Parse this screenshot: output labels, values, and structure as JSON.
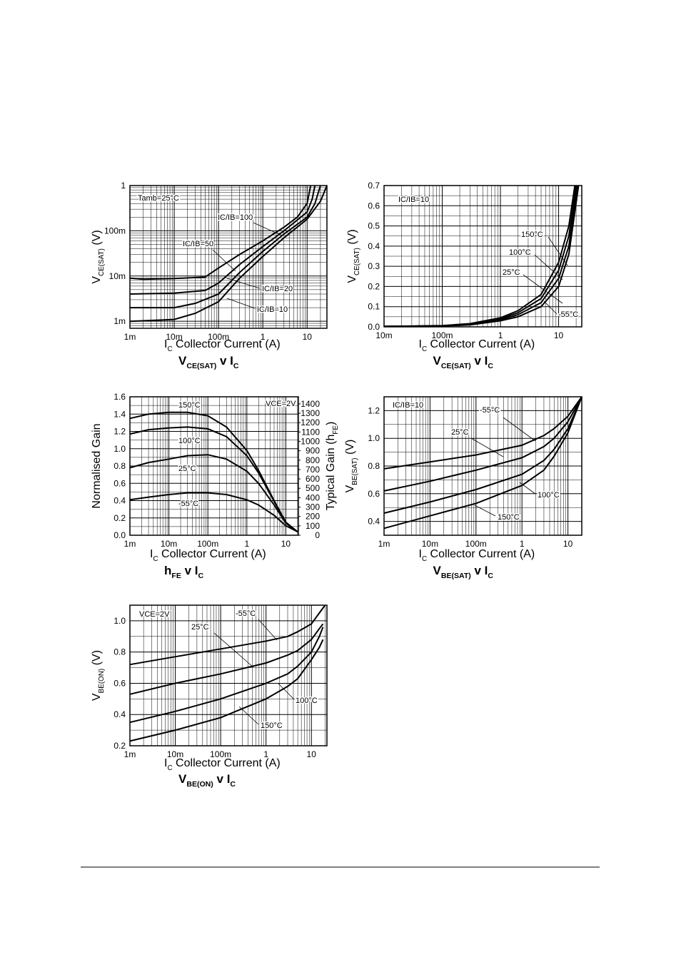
{
  "chart_data": [
    {
      "type": "line",
      "title": [
        "V",
        "CE(SAT)",
        " v I",
        "C"
      ],
      "xlabel": [
        "I",
        "C",
        "   Collector Current (A)"
      ],
      "ylabel": [
        "V",
        "CE(SAT)",
        "  (V)"
      ],
      "annotation": "Tamb=25°C",
      "xlog": true,
      "ylog": true,
      "grid": true,
      "minor_grid": true,
      "xlim": [
        0.001,
        28
      ],
      "ylim": [
        0.0007,
        1
      ],
      "xticks": [
        {
          "value": 0.001,
          "label": "1m"
        },
        {
          "value": 0.01,
          "label": "10m"
        },
        {
          "value": 0.1,
          "label": "100m"
        },
        1,
        10
      ],
      "yticks": [
        {
          "value": 0.001,
          "label": "1m"
        },
        {
          "value": 0.01,
          "label": "10m"
        },
        {
          "value": 0.1,
          "label": "100m"
        },
        1
      ],
      "series": [
        {
          "name": "IC/IB=100",
          "color": "#000000",
          "x": [
            0.001,
            0.002,
            0.01,
            0.05,
            0.1,
            0.3,
            1,
            3,
            6,
            10,
            12
          ],
          "values": [
            0.009,
            0.0085,
            0.0088,
            0.0095,
            0.015,
            0.03,
            0.06,
            0.12,
            0.2,
            0.4,
            1
          ]
        },
        {
          "name": "IC/IB=50",
          "color": "#000000",
          "x": [
            0.001,
            0.01,
            0.05,
            0.1,
            0.3,
            1,
            3,
            10,
            13,
            15
          ],
          "values": [
            0.004,
            0.0042,
            0.0048,
            0.007,
            0.018,
            0.045,
            0.1,
            0.26,
            0.5,
            1
          ]
        },
        {
          "name": "IC/IB=20",
          "color": "#000000",
          "x": [
            0.001,
            0.01,
            0.03,
            0.1,
            0.3,
            1,
            3,
            10,
            15,
            20
          ],
          "values": [
            0.002,
            0.002,
            0.0025,
            0.004,
            0.012,
            0.035,
            0.085,
            0.2,
            0.4,
            1
          ]
        },
        {
          "name": "IC/IB=10",
          "color": "#000000",
          "x": [
            0.001,
            0.01,
            0.03,
            0.1,
            0.3,
            1,
            3,
            10,
            20,
            28
          ],
          "values": [
            0.001,
            0.0011,
            0.0015,
            0.0027,
            0.009,
            0.027,
            0.07,
            0.18,
            0.45,
            1
          ]
        }
      ]
    },
    {
      "type": "line",
      "title": [
        "V",
        "CE(SAT)",
        " v I",
        "C"
      ],
      "xlabel": [
        "I",
        "C",
        "   Collector Current (A)"
      ],
      "ylabel": [
        "V",
        "CE(SAT)",
        "  (V)"
      ],
      "annotation": "IC/IB=10",
      "xlog": true,
      "ylog": false,
      "grid": true,
      "minor_grid": true,
      "xlim": [
        0.01,
        25
      ],
      "ylim": [
        0,
        0.7
      ],
      "xticks": [
        {
          "value": 0.01,
          "label": "10m"
        },
        {
          "value": 0.1,
          "label": "100m"
        },
        1,
        10
      ],
      "yticks": [
        {
          "value": 0,
          "label": "0.0"
        },
        0.1,
        0.2,
        0.3,
        0.4,
        0.5,
        0.6,
        0.7
      ],
      "series": [
        {
          "name": "150°C",
          "color": "#000000",
          "x": [
            0.01,
            0.1,
            0.3,
            1,
            2,
            5,
            10,
            15,
            19
          ],
          "values": [
            0.002,
            0.006,
            0.016,
            0.045,
            0.08,
            0.16,
            0.32,
            0.5,
            0.7
          ]
        },
        {
          "name": "100°C",
          "color": "#000000",
          "x": [
            0.01,
            0.1,
            0.3,
            1,
            2,
            5,
            10,
            15,
            20
          ],
          "values": [
            0.002,
            0.005,
            0.014,
            0.04,
            0.07,
            0.14,
            0.28,
            0.45,
            0.7
          ]
        },
        {
          "name": "25°C",
          "color": "#000000",
          "x": [
            0.01,
            0.1,
            0.3,
            1,
            2,
            5,
            10,
            15,
            21
          ],
          "values": [
            0.002,
            0.005,
            0.012,
            0.035,
            0.06,
            0.12,
            0.24,
            0.4,
            0.7
          ]
        },
        {
          "name": "-55°C",
          "color": "#000000",
          "x": [
            0.01,
            0.1,
            0.3,
            1,
            2,
            5,
            10,
            15,
            22
          ],
          "values": [
            0.002,
            0.004,
            0.01,
            0.03,
            0.05,
            0.1,
            0.2,
            0.36,
            0.7
          ]
        }
      ]
    },
    {
      "type": "line",
      "title": [
        "h",
        "FE",
        " v I",
        "C"
      ],
      "xlabel": [
        "I",
        "C",
        "   Collector Current (A)"
      ],
      "ylabel": [
        "Normalised Gain"
      ],
      "y2label": [
        "Typical Gain (h",
        "FE",
        ")"
      ],
      "annotation": "VCE=2V",
      "xlog": true,
      "ylog": false,
      "grid": true,
      "minor_grid": true,
      "xlim": [
        0.001,
        21
      ],
      "ylim": [
        0,
        1.6
      ],
      "y2lim": [
        0,
        1475
      ],
      "xticks": [
        {
          "value": 0.001,
          "label": "1m"
        },
        {
          "value": 0.01,
          "label": "10m"
        },
        {
          "value": 0.1,
          "label": "100m"
        },
        1,
        10
      ],
      "yticks": [
        {
          "value": 0,
          "label": "0.0"
        },
        0.2,
        0.4,
        0.6,
        0.8,
        {
          "value": 1,
          "label": "1.0"
        },
        1.2,
        1.4,
        1.6
      ],
      "y2ticks": [
        0,
        100,
        200,
        300,
        400,
        500,
        600,
        700,
        800,
        900,
        1000,
        1100,
        1200,
        1300,
        1400
      ],
      "series": [
        {
          "name": "150°C",
          "color": "#000000",
          "x": [
            0.001,
            0.003,
            0.01,
            0.03,
            0.1,
            0.3,
            1,
            2,
            5,
            10,
            20
          ],
          "values": [
            1.35,
            1.4,
            1.42,
            1.42,
            1.38,
            1.25,
            0.98,
            0.75,
            0.4,
            0.15,
            0.04
          ]
        },
        {
          "name": "100°C",
          "color": "#000000",
          "x": [
            0.001,
            0.003,
            0.01,
            0.03,
            0.1,
            0.3,
            1,
            2,
            5,
            10,
            20
          ],
          "values": [
            1.17,
            1.22,
            1.24,
            1.25,
            1.23,
            1.14,
            0.92,
            0.72,
            0.39,
            0.15,
            0.04
          ]
        },
        {
          "name": "25°C",
          "color": "#000000",
          "x": [
            0.001,
            0.003,
            0.01,
            0.03,
            0.1,
            0.3,
            1,
            2,
            5,
            10,
            20
          ],
          "values": [
            0.78,
            0.84,
            0.88,
            0.92,
            0.93,
            0.88,
            0.74,
            0.6,
            0.35,
            0.14,
            0.04
          ]
        },
        {
          "name": "-55°C",
          "color": "#000000",
          "x": [
            0.001,
            0.003,
            0.01,
            0.03,
            0.1,
            0.3,
            1,
            2,
            5,
            10,
            20
          ],
          "values": [
            0.41,
            0.44,
            0.47,
            0.49,
            0.49,
            0.47,
            0.41,
            0.35,
            0.23,
            0.11,
            0.04
          ]
        }
      ]
    },
    {
      "type": "line",
      "title": [
        "V",
        "BE(SAT)",
        " v I",
        "C"
      ],
      "xlabel": [
        "I",
        "C",
        "   Collector Current (A)"
      ],
      "ylabel": [
        "V",
        "BE(SAT)",
        "  (V)"
      ],
      "annotation": "IC/IB=10",
      "xlog": true,
      "ylog": false,
      "grid": true,
      "minor_grid": true,
      "xlim": [
        0.001,
        20
      ],
      "ylim": [
        0.3,
        1.3
      ],
      "xticks": [
        {
          "value": 0.001,
          "label": "1m"
        },
        {
          "value": 0.01,
          "label": "10m"
        },
        {
          "value": 0.1,
          "label": "100m"
        },
        1,
        10
      ],
      "yticks": [
        0.4,
        0.6,
        0.8,
        {
          "value": 1,
          "label": "1.0"
        },
        1.2
      ],
      "series": [
        {
          "name": "-55°C",
          "color": "#000000",
          "x": [
            0.001,
            0.01,
            0.1,
            1,
            3,
            5,
            10,
            20
          ],
          "values": [
            0.78,
            0.83,
            0.88,
            0.95,
            1.02,
            1.07,
            1.16,
            1.3
          ]
        },
        {
          "name": "25°C",
          "color": "#000000",
          "x": [
            0.001,
            0.01,
            0.1,
            1,
            3,
            5,
            10,
            20
          ],
          "values": [
            0.62,
            0.69,
            0.77,
            0.86,
            0.94,
            1.0,
            1.12,
            1.3
          ]
        },
        {
          "name": "100°C",
          "color": "#000000",
          "x": [
            0.001,
            0.01,
            0.1,
            1,
            3,
            5,
            10,
            20
          ],
          "values": [
            0.46,
            0.54,
            0.63,
            0.74,
            0.84,
            0.92,
            1.07,
            1.3
          ]
        },
        {
          "name": "150°C",
          "color": "#000000",
          "x": [
            0.001,
            0.01,
            0.1,
            1,
            3,
            5,
            10,
            20
          ],
          "values": [
            0.35,
            0.44,
            0.53,
            0.66,
            0.77,
            0.87,
            1.04,
            1.3
          ]
        }
      ]
    },
    {
      "type": "line",
      "title": [
        "V",
        "BE(ON)",
        " v I",
        "C"
      ],
      "xlabel": [
        "I",
        "C",
        "   Collector Current (A)"
      ],
      "ylabel": [
        "V",
        "BE(ON)",
        "  (V)"
      ],
      "annotation": "VCE=2V",
      "xlog": true,
      "ylog": false,
      "grid": true,
      "minor_grid": true,
      "xlim": [
        0.001,
        22
      ],
      "ylim": [
        0.2,
        1.1
      ],
      "xticks": [
        {
          "value": 0.001,
          "label": "1m"
        },
        {
          "value": 0.01,
          "label": "10m"
        },
        {
          "value": 0.1,
          "label": "100m"
        },
        1,
        10
      ],
      "yticks": [
        0.2,
        0.4,
        0.6,
        0.8,
        {
          "value": 1,
          "label": "1.0"
        }
      ],
      "series": [
        {
          "name": "-55°C",
          "color": "#000000",
          "x": [
            0.001,
            0.01,
            0.1,
            1,
            3,
            5,
            10,
            15,
            20
          ],
          "values": [
            0.72,
            0.77,
            0.82,
            0.87,
            0.9,
            0.93,
            0.98,
            1.05,
            1.1
          ]
        },
        {
          "name": "25°C",
          "color": "#000000",
          "x": [
            0.001,
            0.01,
            0.1,
            1,
            3,
            5,
            10,
            15,
            18
          ],
          "values": [
            0.53,
            0.6,
            0.66,
            0.73,
            0.78,
            0.81,
            0.88,
            0.95,
            0.98
          ]
        },
        {
          "name": "100°C",
          "color": "#000000",
          "x": [
            0.001,
            0.01,
            0.1,
            1,
            3,
            5,
            10,
            15,
            18
          ],
          "values": [
            0.35,
            0.42,
            0.5,
            0.6,
            0.66,
            0.71,
            0.8,
            0.9,
            0.96
          ]
        },
        {
          "name": "150°C",
          "color": "#000000",
          "x": [
            0.001,
            0.01,
            0.1,
            1,
            3,
            5,
            10,
            15,
            18
          ],
          "values": [
            0.23,
            0.3,
            0.38,
            0.5,
            0.58,
            0.63,
            0.75,
            0.83,
            0.88
          ]
        }
      ]
    }
  ]
}
